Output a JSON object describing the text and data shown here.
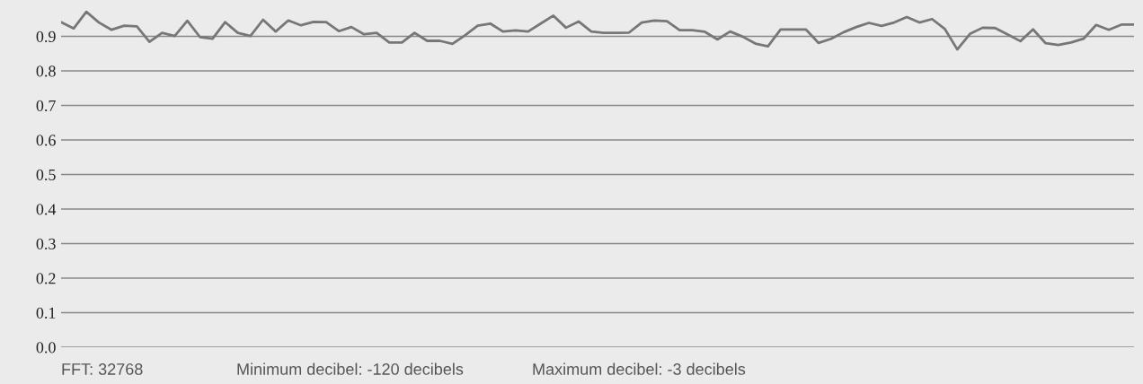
{
  "chart_data": {
    "type": "line",
    "categories": [
      null,
      null,
      null,
      null,
      null,
      null,
      null,
      null,
      null,
      null,
      null,
      null,
      null,
      null,
      null,
      null,
      null,
      null,
      null,
      null,
      null,
      null,
      null,
      null,
      null,
      null,
      null,
      null,
      null,
      null,
      null,
      null,
      null,
      null,
      null,
      null,
      null,
      null,
      null,
      null,
      null,
      null,
      null,
      null,
      null,
      null,
      null,
      null,
      null,
      null,
      null,
      null,
      null,
      null,
      null,
      null,
      null,
      null,
      null,
      null,
      null,
      null,
      null,
      null,
      null,
      null,
      null,
      null,
      null,
      null,
      null,
      null,
      null,
      null,
      null,
      null,
      null,
      null,
      null,
      null,
      null,
      null,
      null,
      null,
      null,
      null
    ],
    "series": [
      {
        "color": "#777777",
        "values": [
          0.941,
          0.923,
          0.971,
          0.94,
          0.919,
          0.931,
          0.929,
          0.884,
          0.91,
          0.901,
          0.945,
          0.898,
          0.893,
          0.941,
          0.91,
          0.901,
          0.948,
          0.914,
          0.946,
          0.932,
          0.942,
          0.941,
          0.915,
          0.927,
          0.906,
          0.91,
          0.882,
          0.882,
          0.91,
          0.887,
          0.887,
          0.878,
          0.903,
          0.931,
          0.937,
          0.914,
          0.917,
          0.914,
          0.937,
          0.96,
          0.925,
          0.943,
          0.914,
          0.91,
          0.91,
          0.911,
          0.94,
          0.946,
          0.944,
          0.918,
          0.918,
          0.913,
          0.891,
          0.914,
          0.899,
          0.879,
          0.871,
          0.92,
          0.92,
          0.92,
          0.881,
          0.893,
          0.912,
          0.927,
          0.939,
          0.93,
          0.94,
          0.956,
          0.94,
          0.95,
          0.922,
          0.862,
          0.907,
          0.925,
          0.924,
          0.905,
          0.886,
          0.92,
          0.88,
          0.875,
          0.882,
          0.893,
          0.933,
          0.919,
          0.934,
          0.934
        ]
      }
    ],
    "ylim": [
      0,
      1.0
    ],
    "yticks": [
      {
        "value": 0,
        "label": "0.0"
      },
      0.1,
      0.2,
      0.3,
      0.4,
      0.5,
      0.6,
      0.7,
      0.8,
      0.9
    ],
    "grid": "y",
    "marker": "none",
    "line_style": "solid",
    "annotations": [
      "FFT: 32768",
      "Minimum decibel: -120 decibels",
      "Maximum decibel: -3 decibels"
    ]
  }
}
